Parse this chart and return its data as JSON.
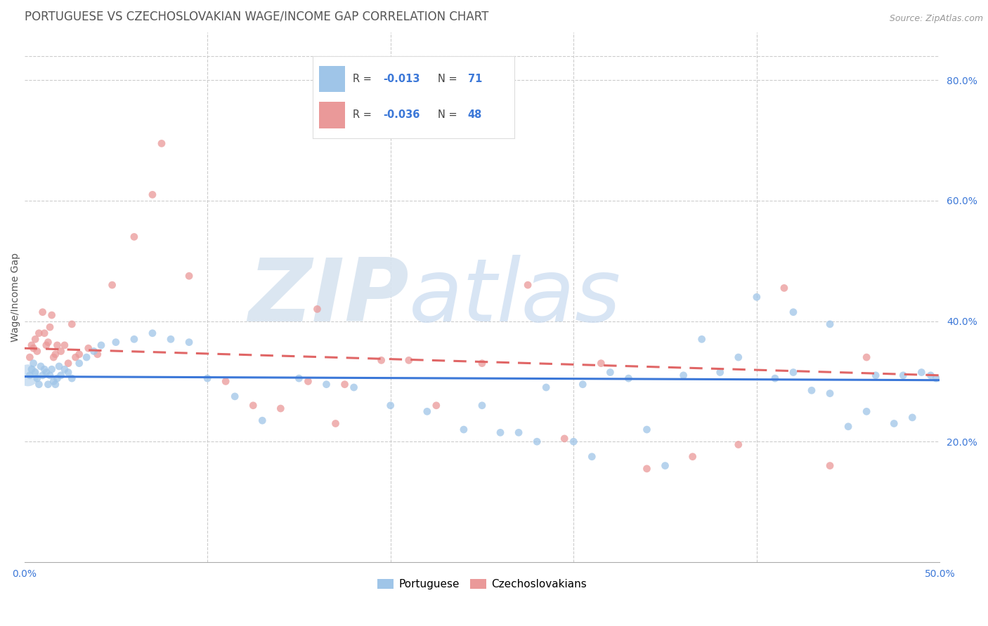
{
  "title": "PORTUGUESE VS CZECHOSLOVAKIAN WAGE/INCOME GAP CORRELATION CHART",
  "source": "Source: ZipAtlas.com",
  "ylabel": "Wage/Income Gap",
  "xlim": [
    0.0,
    0.5
  ],
  "ylim": [
    0.0,
    0.88
  ],
  "xtick_vals": [
    0.0,
    0.1,
    0.2,
    0.3,
    0.4,
    0.5
  ],
  "xticklabels": [
    "0.0%",
    "",
    "",
    "",
    "",
    "50.0%"
  ],
  "yticks_right": [
    0.2,
    0.4,
    0.6,
    0.8
  ],
  "ytick_right_labels": [
    "20.0%",
    "40.0%",
    "60.0%",
    "80.0%"
  ],
  "blue_color": "#9fc5e8",
  "pink_color": "#ea9999",
  "blue_line_color": "#3c78d8",
  "pink_line_color": "#e06666",
  "legend_text_color": "#3c78d8",
  "legend_R_blue": "-0.013",
  "legend_N_blue": "71",
  "legend_R_pink": "-0.036",
  "legend_N_pink": "48",
  "watermark": "ZIPatlas",
  "blue_scatter_x": [
    0.003,
    0.004,
    0.005,
    0.006,
    0.007,
    0.008,
    0.009,
    0.01,
    0.011,
    0.012,
    0.013,
    0.014,
    0.015,
    0.016,
    0.017,
    0.018,
    0.019,
    0.02,
    0.022,
    0.024,
    0.026,
    0.03,
    0.034,
    0.038,
    0.042,
    0.05,
    0.06,
    0.07,
    0.08,
    0.09,
    0.1,
    0.115,
    0.13,
    0.15,
    0.165,
    0.18,
    0.2,
    0.22,
    0.24,
    0.26,
    0.28,
    0.3,
    0.32,
    0.34,
    0.36,
    0.38,
    0.4,
    0.42,
    0.44,
    0.46,
    0.48,
    0.49,
    0.495,
    0.498,
    0.25,
    0.27,
    0.31,
    0.35,
    0.41,
    0.43,
    0.45,
    0.465,
    0.475,
    0.485,
    0.44,
    0.42,
    0.39,
    0.37,
    0.33,
    0.305,
    0.285
  ],
  "blue_scatter_y": [
    0.31,
    0.32,
    0.33,
    0.315,
    0.305,
    0.295,
    0.325,
    0.31,
    0.32,
    0.315,
    0.295,
    0.31,
    0.32,
    0.3,
    0.295,
    0.305,
    0.325,
    0.31,
    0.32,
    0.315,
    0.305,
    0.33,
    0.34,
    0.35,
    0.36,
    0.365,
    0.37,
    0.38,
    0.37,
    0.365,
    0.305,
    0.275,
    0.235,
    0.305,
    0.295,
    0.29,
    0.26,
    0.25,
    0.22,
    0.215,
    0.2,
    0.2,
    0.315,
    0.22,
    0.31,
    0.315,
    0.44,
    0.315,
    0.28,
    0.25,
    0.31,
    0.315,
    0.31,
    0.305,
    0.26,
    0.215,
    0.175,
    0.16,
    0.305,
    0.285,
    0.225,
    0.31,
    0.23,
    0.24,
    0.395,
    0.415,
    0.34,
    0.37,
    0.305,
    0.295,
    0.29
  ],
  "pink_scatter_x": [
    0.003,
    0.004,
    0.005,
    0.006,
    0.007,
    0.008,
    0.01,
    0.011,
    0.012,
    0.013,
    0.014,
    0.015,
    0.016,
    0.017,
    0.018,
    0.02,
    0.022,
    0.024,
    0.026,
    0.028,
    0.03,
    0.035,
    0.04,
    0.048,
    0.06,
    0.075,
    0.09,
    0.11,
    0.125,
    0.14,
    0.16,
    0.175,
    0.195,
    0.21,
    0.225,
    0.25,
    0.275,
    0.295,
    0.315,
    0.34,
    0.365,
    0.39,
    0.415,
    0.44,
    0.46,
    0.155,
    0.17,
    0.07
  ],
  "pink_scatter_y": [
    0.34,
    0.36,
    0.355,
    0.37,
    0.35,
    0.38,
    0.415,
    0.38,
    0.36,
    0.365,
    0.39,
    0.41,
    0.34,
    0.345,
    0.36,
    0.35,
    0.36,
    0.33,
    0.395,
    0.34,
    0.345,
    0.355,
    0.345,
    0.46,
    0.54,
    0.695,
    0.475,
    0.3,
    0.26,
    0.255,
    0.42,
    0.295,
    0.335,
    0.335,
    0.26,
    0.33,
    0.46,
    0.205,
    0.33,
    0.155,
    0.175,
    0.195,
    0.455,
    0.16,
    0.34,
    0.3,
    0.23,
    0.61
  ],
  "blue_trend_x": [
    0.0,
    0.5
  ],
  "blue_trend_y": [
    0.308,
    0.302
  ],
  "pink_trend_x": [
    0.0,
    0.5
  ],
  "pink_trend_y": [
    0.355,
    0.31
  ],
  "bg_color": "#ffffff",
  "grid_color": "#cccccc",
  "title_fontsize": 12,
  "axis_label_fontsize": 10,
  "tick_fontsize": 10,
  "watermark_color": "#e0e8f4",
  "marker_size": 60,
  "marker_alpha": 0.75,
  "title_color": "#555555",
  "right_tick_color": "#3c78d8"
}
